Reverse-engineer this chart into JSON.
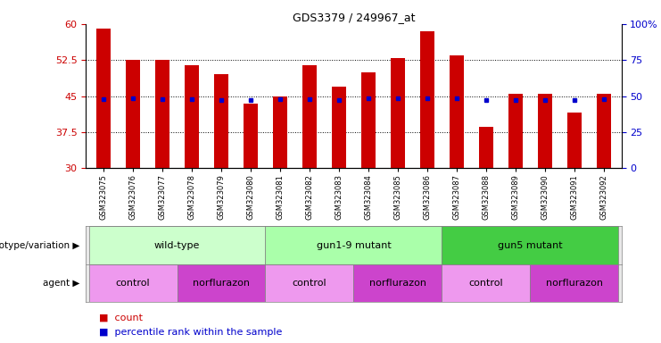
{
  "title": "GDS3379 / 249967_at",
  "samples": [
    "GSM323075",
    "GSM323076",
    "GSM323077",
    "GSM323078",
    "GSM323079",
    "GSM323080",
    "GSM323081",
    "GSM323082",
    "GSM323083",
    "GSM323084",
    "GSM323085",
    "GSM323086",
    "GSM323087",
    "GSM323088",
    "GSM323089",
    "GSM323090",
    "GSM323091",
    "GSM323092"
  ],
  "counts": [
    59.0,
    52.5,
    52.5,
    51.5,
    49.5,
    43.5,
    45.0,
    51.5,
    47.0,
    50.0,
    53.0,
    58.5,
    53.5,
    38.5,
    45.5,
    45.5,
    41.5,
    45.5
  ],
  "percentiles": [
    48.0,
    48.5,
    48.0,
    48.0,
    47.5,
    47.0,
    48.0,
    48.0,
    47.0,
    48.5,
    48.5,
    48.5,
    48.5,
    47.0,
    47.5,
    47.5,
    47.0,
    48.0
  ],
  "ylim_left": [
    30,
    60
  ],
  "ylim_right": [
    0,
    100
  ],
  "yticks_left": [
    30,
    37.5,
    45,
    52.5,
    60
  ],
  "yticks_right": [
    0,
    25,
    50,
    75,
    100
  ],
  "bar_color": "#cc0000",
  "dot_color": "#0000cc",
  "geno_groups": [
    {
      "label": "wild-type",
      "start": 0,
      "end": 5,
      "color": "#ccffcc"
    },
    {
      "label": "gun1-9 mutant",
      "start": 6,
      "end": 11,
      "color": "#aaffaa"
    },
    {
      "label": "gun5 mutant",
      "start": 12,
      "end": 17,
      "color": "#44cc44"
    }
  ],
  "agent_groups": [
    {
      "label": "control",
      "start": 0,
      "end": 2,
      "color": "#ee99ee"
    },
    {
      "label": "norflurazon",
      "start": 3,
      "end": 5,
      "color": "#cc44cc"
    },
    {
      "label": "control",
      "start": 6,
      "end": 8,
      "color": "#ee99ee"
    },
    {
      "label": "norflurazon",
      "start": 9,
      "end": 11,
      "color": "#cc44cc"
    },
    {
      "label": "control",
      "start": 12,
      "end": 14,
      "color": "#ee99ee"
    },
    {
      "label": "norflurazon",
      "start": 15,
      "end": 17,
      "color": "#cc44cc"
    }
  ],
  "geno_label": "genotype/variation",
  "agent_label": "agent",
  "legend_count": "count",
  "legend_pct": "percentile rank within the sample",
  "grid_yticks": [
    37.5,
    45,
    52.5
  ],
  "bar_width": 0.5,
  "background": "#ffffff",
  "xticklabel_bg": "#dddddd"
}
